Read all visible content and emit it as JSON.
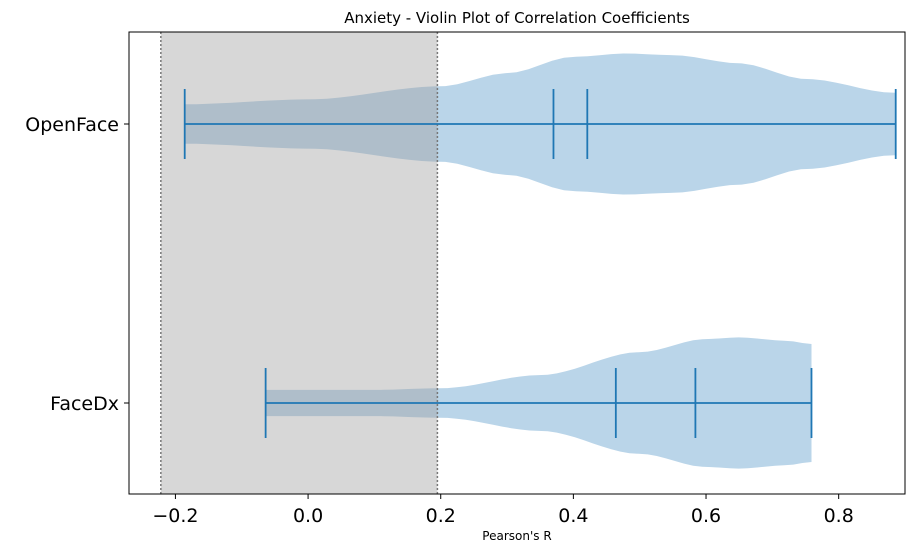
{
  "chart_data": {
    "type": "violin",
    "orientation": "horizontal",
    "title": "Anxiety - Violin Plot of Correlation Coefficients",
    "xlabel": "Pearson's R",
    "ylabel": "",
    "xlim": [
      -0.27,
      0.9
    ],
    "xticks": [
      -0.2,
      0.0,
      0.2,
      0.4,
      0.6,
      0.8
    ],
    "xtick_labels": [
      "−0.2",
      "0.0",
      "0.2",
      "0.4",
      "0.6",
      "0.8"
    ],
    "categories": [
      "OpenFace",
      "FaceDx"
    ],
    "grid": false,
    "shaded_region": {
      "x_range": [
        -0.222,
        0.195
      ],
      "color": "#d8d8d8",
      "boundary_style": "dotted"
    },
    "colors": {
      "violin_fill": "#bad5e9",
      "stats_line": "#1f77b4",
      "boundary_line": "#777777"
    },
    "violins": [
      {
        "category": "OpenFace",
        "min": -0.186,
        "max": 0.886,
        "markers": [
          0.37,
          0.421
        ],
        "density_profile": [
          [
            -0.186,
            0.24
          ],
          [
            0.0,
            0.3
          ],
          [
            0.2,
            0.46
          ],
          [
            0.3,
            0.62
          ],
          [
            0.4,
            0.82
          ],
          [
            0.48,
            0.86
          ],
          [
            0.55,
            0.84
          ],
          [
            0.65,
            0.74
          ],
          [
            0.75,
            0.55
          ],
          [
            0.886,
            0.38
          ]
        ]
      },
      {
        "category": "FaceDx",
        "min": -0.064,
        "max": 0.759,
        "markers": [
          0.464,
          0.584
        ],
        "density_profile": [
          [
            -0.064,
            0.16
          ],
          [
            0.1,
            0.16
          ],
          [
            0.2,
            0.18
          ],
          [
            0.35,
            0.34
          ],
          [
            0.5,
            0.62
          ],
          [
            0.6,
            0.78
          ],
          [
            0.65,
            0.8
          ],
          [
            0.72,
            0.76
          ],
          [
            0.759,
            0.72
          ]
        ]
      }
    ]
  }
}
